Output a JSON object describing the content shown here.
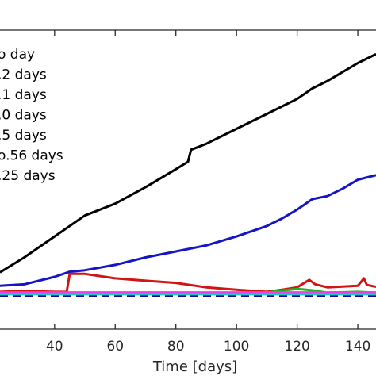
{
  "chart_data": {
    "type": "line",
    "title": "",
    "xlabel": "Time [days]",
    "ylabel": "",
    "xlim": [
      22,
      146
    ],
    "ylim": [
      0,
      1
    ],
    "grid": false,
    "legend_placement": "top-left",
    "x_ticks": [
      {
        "value": 40,
        "label": "40"
      },
      {
        "value": 60,
        "label": "60"
      },
      {
        "value": 80,
        "label": "80"
      },
      {
        "value": 100,
        "label": "100"
      },
      {
        "value": 120,
        "label": "120"
      },
      {
        "value": 140,
        "label": "140"
      }
    ],
    "legend": [
      {
        "label": "o day",
        "color": "#000000"
      },
      {
        "label": ".2 days",
        "color": "#000000"
      },
      {
        "label": ".1 days",
        "color": "#000000"
      },
      {
        "label": ".0 days",
        "color": "#000000"
      },
      {
        "label": ".5 days",
        "color": "#000000"
      },
      {
        "label": "o.56 days",
        "color": "#000000"
      },
      {
        "label": ".25 days",
        "color": "#000000"
      }
    ],
    "series": [
      {
        "color": "#000000",
        "dash": false,
        "x": [
          22,
          30,
          40,
          50,
          60,
          70,
          80,
          84,
          85,
          90,
          100,
          110,
          120,
          125,
          130,
          140,
          146
        ],
        "y": [
          0.19,
          0.24,
          0.31,
          0.38,
          0.42,
          0.475,
          0.535,
          0.56,
          0.6,
          0.62,
          0.67,
          0.72,
          0.77,
          0.805,
          0.83,
          0.89,
          0.92
        ]
      },
      {
        "color": "#1414c8",
        "dash": false,
        "x": [
          22,
          30,
          40,
          45,
          50,
          60,
          70,
          80,
          90,
          100,
          110,
          115,
          120,
          125,
          130,
          135,
          140,
          146
        ],
        "y": [
          0.145,
          0.15,
          0.175,
          0.192,
          0.197,
          0.215,
          0.24,
          0.26,
          0.28,
          0.31,
          0.345,
          0.37,
          0.4,
          0.435,
          0.445,
          0.47,
          0.5,
          0.515
        ]
      },
      {
        "color": "#d21414",
        "dash": false,
        "x": [
          22,
          30,
          40,
          44,
          45,
          50,
          60,
          70,
          80,
          90,
          100,
          110,
          115,
          120,
          124,
          126,
          130,
          140,
          142,
          143,
          146
        ],
        "y": [
          0.125,
          0.128,
          0.125,
          0.125,
          0.185,
          0.185,
          0.17,
          0.162,
          0.155,
          0.14,
          0.132,
          0.125,
          0.132,
          0.14,
          0.165,
          0.15,
          0.14,
          0.145,
          0.17,
          0.148,
          0.142
        ]
      },
      {
        "color": "#1fb41f",
        "dash": false,
        "x": [
          22,
          100,
          110,
          114,
          120,
          125,
          130,
          140,
          146
        ],
        "y": [
          0.118,
          0.12,
          0.122,
          0.128,
          0.135,
          0.13,
          0.122,
          0.125,
          0.122
        ]
      },
      {
        "color": "#e640e6",
        "dash": false,
        "x": [
          22,
          146
        ],
        "y": [
          0.123,
          0.123
        ]
      },
      {
        "color": "#0a0a96",
        "dash": true,
        "x": [
          22,
          146
        ],
        "y": [
          0.112,
          0.112
        ]
      },
      {
        "color": "#19c8c8",
        "dash": false,
        "x": [
          22,
          146
        ],
        "y": [
          0.117,
          0.117
        ]
      }
    ]
  }
}
